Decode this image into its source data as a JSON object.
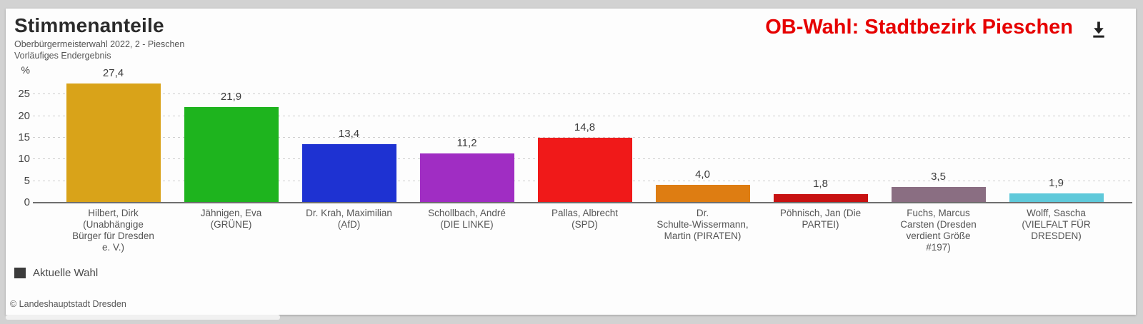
{
  "header": {
    "title": "Stimmenanteile",
    "subtitle_line1": "Oberbürgermeisterwahl 2022, 2 - Pieschen",
    "subtitle_line2": "Vorläufiges Endergebnis",
    "context_title": "OB-Wahl: Stadtbezirk Pieschen",
    "context_title_color": "#e60000"
  },
  "chart_data": {
    "type": "bar",
    "title": "Stimmenanteile",
    "subtitle": "Oberbürgermeisterwahl 2022, 2 - Pieschen / Vorläufiges Endergebnis",
    "unit_label": "%",
    "ylim": [
      0,
      30
    ],
    "yticks": [
      0,
      5,
      10,
      15,
      20,
      25
    ],
    "grid": "horizontal-dashed",
    "legend_position": "bottom-left",
    "categories": [
      "Hilbert, Dirk (Unabhängige Bürger für Dresden e. V.)",
      "Jähnigen, Eva (GRÜNE)",
      "Dr. Krah, Maximilian (AfD)",
      "Schollbach, André (DIE LINKE)",
      "Pallas, Albrecht (SPD)",
      "Dr. Schulte-Wissermann, Martin (PIRATEN)",
      "Pöhnisch, Jan (Die PARTEI)",
      "Fuchs, Marcus Carsten (Dresden verdient Größe #197)",
      "Wolff, Sascha (VIELFALT FÜR DRESDEN)"
    ],
    "category_label_lines": [
      [
        "Hilbert, Dirk",
        "(Unabhängige",
        "Bürger für Dresden",
        "e. V.)"
      ],
      [
        "Jähnigen, Eva",
        "(GRÜNE)"
      ],
      [
        "Dr. Krah, Maximilian",
        "(AfD)"
      ],
      [
        "Schollbach, André",
        "(DIE LINKE)"
      ],
      [
        "Pallas, Albrecht",
        "(SPD)"
      ],
      [
        "Dr.",
        "Schulte-Wissermann,",
        "Martin (PIRATEN)"
      ],
      [
        "Pöhnisch, Jan (Die",
        "PARTEI)"
      ],
      [
        "Fuchs, Marcus",
        "Carsten (Dresden",
        "verdient Größe",
        "#197)"
      ],
      [
        "Wolff, Sascha",
        "(VIELFALT FÜR",
        "DRESDEN)"
      ]
    ],
    "series": [
      {
        "name": "Aktuelle Wahl",
        "values": [
          27.4,
          21.9,
          13.4,
          11.2,
          14.8,
          4.0,
          1.8,
          3.5,
          1.9
        ]
      }
    ],
    "value_labels": [
      "27,4",
      "21,9",
      "13,4",
      "11,2",
      "14,8",
      "4,0",
      "1,8",
      "3,5",
      "1,9"
    ],
    "bar_colors": [
      "#d9a319",
      "#1eb41e",
      "#1e32d2",
      "#a02dc3",
      "#f01919",
      "#de7d12",
      "#c81111",
      "#8a6e82",
      "#5fc9da"
    ]
  },
  "legend": {
    "items": [
      {
        "label": "Aktuelle Wahl",
        "color": "#3b3b3b"
      }
    ]
  },
  "footer": {
    "credits": "© Landeshauptstadt Dresden"
  },
  "icons": {
    "download": "download-icon"
  }
}
